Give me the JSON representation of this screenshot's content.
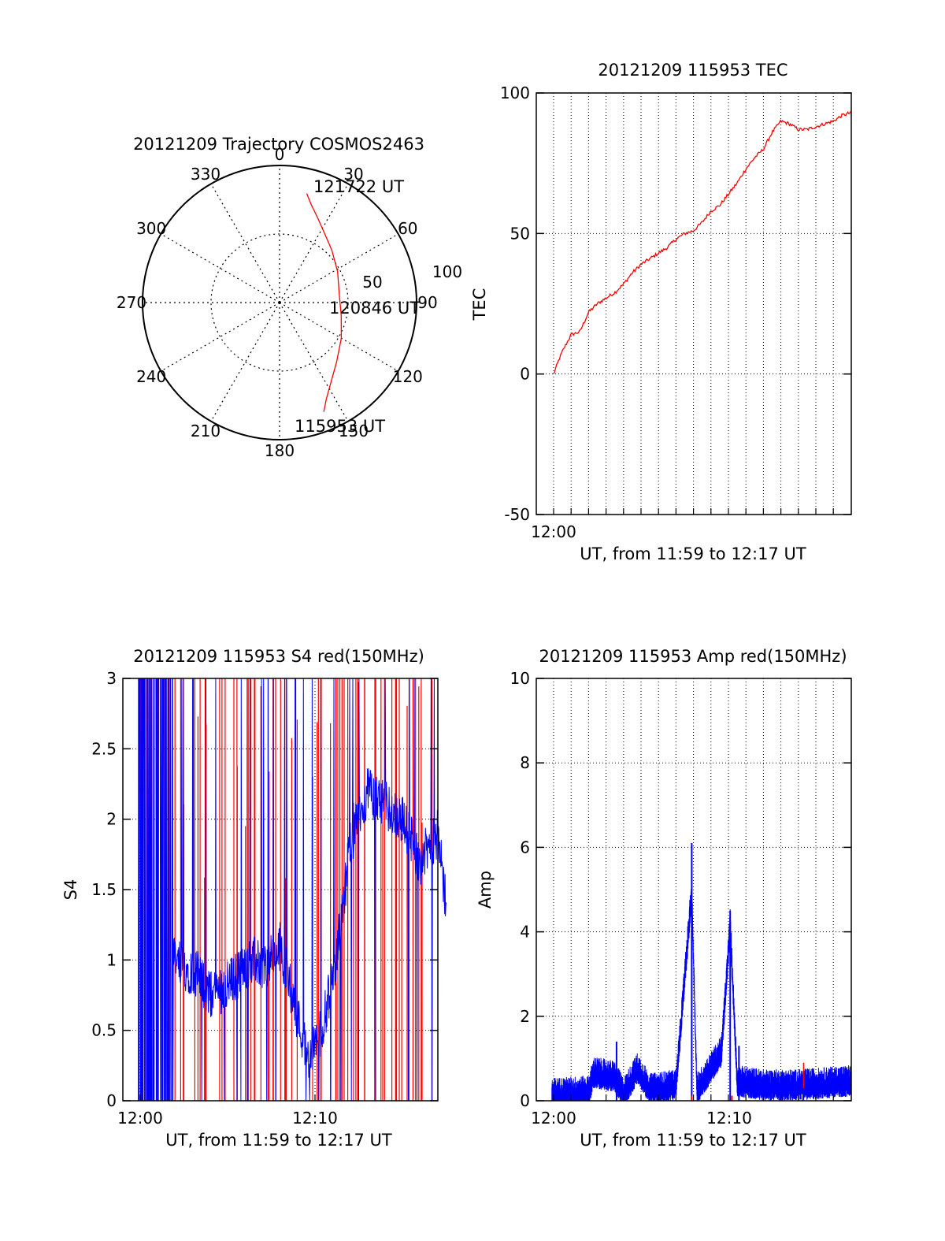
{
  "colors": {
    "red": "#ff0000",
    "blue": "#0000ff",
    "axis": "#000000",
    "grid": "#000000"
  },
  "chart_data": [
    {
      "id": "trajectory",
      "type": "polar",
      "title": "20121209 Trajectory COSMOS2463",
      "azimuth_labels": [
        "0",
        "30",
        "60",
        "90",
        "120",
        "150",
        "180",
        "210",
        "240",
        "270",
        "300",
        "330"
      ],
      "radial_labels": [
        "50",
        "100"
      ],
      "radial_max": 100,
      "grid": true,
      "annotations": [
        "121722 UT",
        "120846 UT",
        "115953 UT"
      ],
      "track": {
        "color": "red",
        "points": [
          {
            "az": 14,
            "zd": 82
          },
          {
            "az": 18,
            "zd": 75
          },
          {
            "az": 24,
            "zd": 68
          },
          {
            "az": 32,
            "zd": 61
          },
          {
            "az": 45,
            "zd": 54
          },
          {
            "az": 62,
            "zd": 48
          },
          {
            "az": 82,
            "zd": 44
          },
          {
            "az": 102,
            "zd": 46
          },
          {
            "az": 120,
            "zd": 52
          },
          {
            "az": 136,
            "zd": 60
          },
          {
            "az": 147,
            "zd": 69
          },
          {
            "az": 154,
            "zd": 78
          },
          {
            "az": 158,
            "zd": 86
          }
        ]
      }
    },
    {
      "id": "tec",
      "type": "line",
      "title": "20121209 115953 TEC",
      "ylabel": "TEC",
      "xlabel": "UT, from 11:59 to 12:17 UT",
      "ylim": [
        -50,
        100
      ],
      "yticks": [
        "-50",
        "0",
        "50",
        "100"
      ],
      "xlim_min": [
        0,
        17
      ],
      "xticks": [
        "12:00"
      ],
      "grid": true,
      "series": [
        {
          "color": "red",
          "x": [
            0,
            0.3,
            0.5,
            1,
            1.5,
            2,
            2.5,
            3,
            3.5,
            4,
            4.5,
            5,
            5.5,
            6,
            6.5,
            7,
            7.5,
            8,
            8.5,
            9,
            9.5,
            10,
            10.5,
            11,
            11.5,
            12,
            12.5,
            13,
            13.5,
            14,
            14.5,
            15,
            15.5,
            16,
            16.5,
            17
          ],
          "y": [
            0,
            5,
            8,
            14,
            15,
            22,
            25,
            27,
            29,
            32,
            36,
            39,
            41,
            43,
            45,
            48,
            50,
            51,
            54,
            58,
            60,
            64,
            68,
            73,
            77,
            80,
            86,
            90,
            89,
            87,
            87,
            88,
            89,
            90,
            92,
            93
          ]
        }
      ]
    },
    {
      "id": "s4",
      "type": "line",
      "title": "20121209 115953 S4 red(150MHz)",
      "ylabel": "S4",
      "xlabel": "UT, from 11:59 to 12:17 UT",
      "ylim": [
        0,
        3
      ],
      "yticks": [
        "0",
        "0.5",
        "1",
        "1.5",
        "2",
        "2.5",
        "3"
      ],
      "xlim_min": [
        -0.5,
        17.5
      ],
      "xticks": [
        "12:00",
        "12:10"
      ],
      "grid": true,
      "series": [
        {
          "name": "",
          "color": "blue",
          "baseline": [
            [
              0,
              3
            ],
            [
              1.5,
              3
            ],
            [
              1.8,
              1.0
            ],
            [
              2.5,
              0.95
            ],
            [
              3.3,
              0.9
            ],
            [
              4.0,
              0.75
            ],
            [
              4.8,
              0.8
            ],
            [
              5.6,
              0.9
            ],
            [
              6.4,
              1.0
            ],
            [
              7.2,
              0.95
            ],
            [
              8.0,
              1.1
            ],
            [
              8.8,
              0.7
            ],
            [
              9.6,
              0.3
            ],
            [
              10.4,
              0.5
            ],
            [
              11.2,
              1.0
            ],
            [
              12.0,
              1.8
            ],
            [
              13.0,
              2.2
            ],
            [
              14.0,
              2.1
            ],
            [
              15.0,
              2.0
            ],
            [
              16.0,
              1.7
            ],
            [
              17.0,
              1.9
            ],
            [
              17.5,
              1.4
            ]
          ]
        },
        {
          "name": "",
          "color": "red"
        }
      ]
    },
    {
      "id": "amp",
      "type": "line",
      "title": "20121209 115953 Amp red(150MHz)",
      "ylabel": "Amp",
      "xlabel": "UT, from 11:59 to 12:17 UT",
      "ylim": [
        0,
        10
      ],
      "yticks": [
        "0",
        "2",
        "4",
        "6",
        "8",
        "10"
      ],
      "xlim_min": [
        0,
        17
      ],
      "xticks": [
        "12:00",
        "12:10"
      ],
      "grid": true,
      "series": [
        {
          "color": "blue",
          "baseline": [
            [
              0,
              0.2
            ],
            [
              2,
              0.25
            ],
            [
              2.3,
              0.7
            ],
            [
              3.5,
              0.6
            ],
            [
              4,
              0.2
            ],
            [
              4.8,
              0.8
            ],
            [
              5.5,
              0.3
            ],
            [
              7,
              0.4
            ],
            [
              7.9,
              5.0
            ],
            [
              8.2,
              0.3
            ],
            [
              9.6,
              1.2
            ],
            [
              10.1,
              4.2
            ],
            [
              10.5,
              0.5
            ],
            [
              12,
              0.4
            ],
            [
              14,
              0.4
            ],
            [
              17,
              0.5
            ]
          ],
          "peaks": [
            {
              "x": 7.9,
              "y": 6.1
            },
            {
              "x": 10.1,
              "y": 4.5
            },
            {
              "x": 10.6,
              "y": 1.3
            },
            {
              "x": 3.6,
              "y": 1.4
            }
          ]
        },
        {
          "color": "red",
          "peaks": [
            {
              "x": 14.3,
              "y": 0.9
            }
          ]
        }
      ]
    }
  ]
}
